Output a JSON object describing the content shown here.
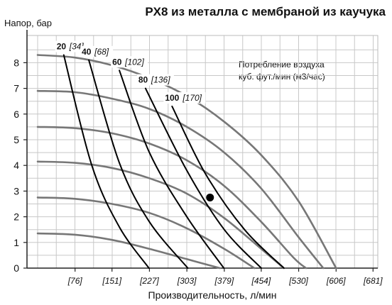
{
  "chart_data": {
    "type": "line",
    "title": "PX8 из металла с мембраной из каучука",
    "ylabel": "Напор, бар",
    "xlabel": "Производительность, л/мин",
    "xlim": [
      0,
      681
    ],
    "ylim": [
      0,
      8.5
    ],
    "x_ticks": [
      "[76]",
      "[151]",
      "[227]",
      "[303]",
      "[379]",
      "[454]",
      "[530]",
      "[606]",
      "[681]"
    ],
    "x_tick_values": [
      76,
      151,
      227,
      303,
      379,
      454,
      530,
      606,
      681
    ],
    "y_ticks": [
      "0",
      "1",
      "2",
      "3",
      "4",
      "5",
      "6",
      "7",
      "8"
    ],
    "y_tick_values": [
      0,
      1,
      2,
      3,
      4,
      5,
      6,
      7,
      8
    ],
    "grid": true,
    "legend_text": [
      "Потребление воздуха",
      "куб. фут./мин (м3/час)"
    ],
    "series": [
      {
        "kind": "air-inlet-pressure",
        "x": [
          0,
          76,
          151,
          227,
          303,
          379,
          454,
          530,
          606
        ],
        "y": [
          8.3,
          8.2,
          7.9,
          7.4,
          6.7,
          5.7,
          4.4,
          2.6,
          0
        ]
      },
      {
        "kind": "air-inlet-pressure",
        "x": [
          0,
          76,
          151,
          227,
          303,
          379,
          454,
          530,
          580
        ],
        "y": [
          6.9,
          6.85,
          6.6,
          6.2,
          5.5,
          4.5,
          3.1,
          1.2,
          0
        ]
      },
      {
        "kind": "air-inlet-pressure",
        "x": [
          0,
          76,
          151,
          227,
          303,
          379,
          454,
          520,
          545
        ],
        "y": [
          5.5,
          5.45,
          5.25,
          4.85,
          4.2,
          3.2,
          1.8,
          0.4,
          0
        ]
      },
      {
        "kind": "air-inlet-pressure",
        "x": [
          0,
          76,
          151,
          227,
          303,
          379,
          454,
          500
        ],
        "y": [
          4.15,
          4.1,
          3.9,
          3.5,
          2.9,
          1.95,
          0.75,
          0
        ]
      },
      {
        "kind": "air-inlet-pressure",
        "x": [
          0,
          76,
          151,
          227,
          303,
          379,
          440
        ],
        "y": [
          2.75,
          2.7,
          2.5,
          2.15,
          1.55,
          0.75,
          0
        ]
      },
      {
        "kind": "air-inlet-pressure",
        "x": [
          0,
          76,
          151,
          227,
          303,
          370
        ],
        "y": [
          1.35,
          1.3,
          1.1,
          0.75,
          0.35,
          0
        ]
      },
      {
        "kind": "air-consumption",
        "label": "20",
        "alt": "[34]",
        "x": [
          53,
          110,
          166,
          226
        ],
        "y": [
          8.3,
          4.0,
          1.6,
          0
        ]
      },
      {
        "kind": "air-consumption",
        "label": "40",
        "alt": "[68]",
        "x": [
          104,
          166,
          227,
          305
        ],
        "y": [
          8.1,
          4.1,
          1.8,
          0
        ]
      },
      {
        "kind": "air-consumption",
        "label": "60",
        "alt": "[102]",
        "x": [
          166,
          227,
          303,
          378
        ],
        "y": [
          7.7,
          4.5,
          2.0,
          0
        ]
      },
      {
        "kind": "air-consumption",
        "label": "80",
        "alt": "[136]",
        "x": [
          219,
          303,
          379,
          454
        ],
        "y": [
          7.0,
          3.8,
          1.5,
          0
        ]
      },
      {
        "kind": "air-consumption",
        "label": "100",
        "alt": "[170]",
        "x": [
          273,
          340,
          420,
          500
        ],
        "y": [
          6.3,
          3.7,
          1.5,
          0
        ]
      }
    ],
    "marker": {
      "x": 350,
      "y": 2.75
    }
  }
}
